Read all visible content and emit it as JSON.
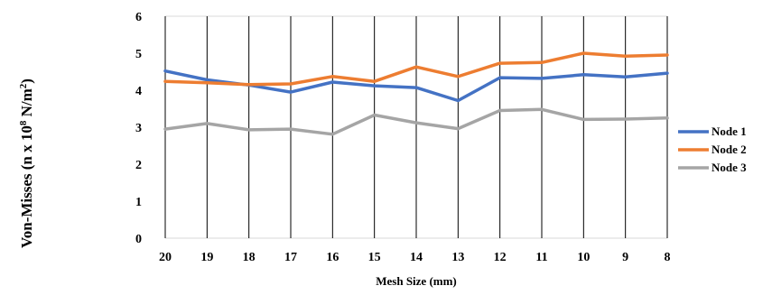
{
  "chart_data": {
    "type": "line",
    "x": [
      "20",
      "19",
      "18",
      "17",
      "16",
      "15",
      "14",
      "13",
      "12",
      "11",
      "10",
      "9",
      "8"
    ],
    "xlabel": "Mesh Size (mm)",
    "ylabel": {
      "prefix": "Von-Misses (n x 10",
      "sup1": "8",
      "mid": " N/m",
      "sup2": "2",
      "suffix": ")"
    },
    "ylim": [
      0,
      6
    ],
    "yticks": [
      "0",
      "1",
      "2",
      "3",
      "4",
      "5",
      "6"
    ],
    "grid": "vertical",
    "legend_position": "right",
    "series": [
      {
        "name": "Node 1",
        "color": "#4472C4",
        "values": [
          4.52,
          4.28,
          4.14,
          3.95,
          4.22,
          4.12,
          4.07,
          3.72,
          4.34,
          4.32,
          4.42,
          4.36,
          4.46
        ]
      },
      {
        "name": "Node 2",
        "color": "#ED7D31",
        "values": [
          4.24,
          4.2,
          4.15,
          4.17,
          4.37,
          4.24,
          4.63,
          4.37,
          4.73,
          4.75,
          5.0,
          4.92,
          4.95
        ]
      },
      {
        "name": "Node 3",
        "color": "#A5A5A5",
        "values": [
          2.95,
          3.1,
          2.93,
          2.95,
          2.81,
          3.33,
          3.12,
          2.96,
          3.45,
          3.48,
          3.21,
          3.22,
          3.25
        ]
      }
    ]
  }
}
